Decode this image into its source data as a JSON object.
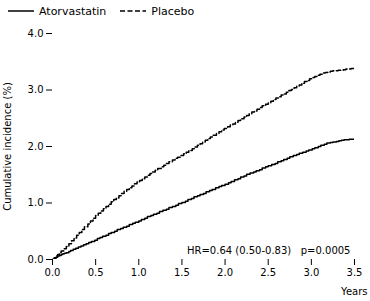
{
  "chart_data": {
    "type": "line",
    "line_style": "step",
    "title": "",
    "xlabel": "Years",
    "ylabel": "Cumulative incidence (%)",
    "xlim": [
      0.0,
      3.5
    ],
    "ylim": [
      0.0,
      4.0
    ],
    "xticks": [
      {
        "value": 0.0,
        "label": "0.0"
      },
      0.5,
      {
        "value": 1.0,
        "label": "1.0"
      },
      1.5,
      {
        "value": 2.0,
        "label": "2.0"
      },
      2.5,
      {
        "value": 3.0,
        "label": "3.0"
      },
      3.5
    ],
    "yticks": [
      {
        "value": 0.0,
        "label": "0.0"
      },
      {
        "value": 1.0,
        "label": "1.0"
      },
      {
        "value": 2.0,
        "label": "2.0"
      },
      {
        "value": 3.0,
        "label": "3.0"
      },
      {
        "value": 4.0,
        "label": "4.0"
      }
    ],
    "annotation": "HR=0.64 (0.50-0.83)   p=0.0005",
    "legend": "upper left",
    "grid": false,
    "series": [
      {
        "name": "Atorvastatin",
        "color": "#000000",
        "line_style": "solid",
        "x": [
          0.0,
          0.02,
          0.04,
          0.06,
          0.08,
          0.1,
          0.12,
          0.14,
          0.16,
          0.19,
          0.21,
          0.24,
          0.27,
          0.3,
          0.33,
          0.36,
          0.39,
          0.42,
          0.45,
          0.49,
          0.52,
          0.55,
          0.58,
          0.62,
          0.65,
          0.68,
          0.72,
          0.75,
          0.79,
          0.82,
          0.86,
          0.89,
          0.93,
          0.96,
          1.0,
          1.03,
          1.07,
          1.1,
          1.14,
          1.17,
          1.21,
          1.24,
          1.28,
          1.32,
          1.35,
          1.39,
          1.43,
          1.46,
          1.5,
          1.54,
          1.57,
          1.61,
          1.64,
          1.68,
          1.71,
          1.75,
          1.78,
          1.82,
          1.85,
          1.89,
          1.93,
          1.96,
          2.0,
          2.04,
          2.07,
          2.11,
          2.15,
          2.18,
          2.22,
          2.25,
          2.29,
          2.33,
          2.36,
          2.4,
          2.43,
          2.47,
          2.5,
          2.54,
          2.58,
          2.61,
          2.65,
          2.68,
          2.72,
          2.75,
          2.79,
          2.83,
          2.86,
          2.9,
          2.94,
          2.97,
          3.01,
          3.04,
          3.08,
          3.11,
          3.15,
          3.18,
          3.22,
          3.25,
          3.29,
          3.32,
          3.35,
          3.38,
          3.41,
          3.44,
          3.47,
          3.5
        ],
        "values": [
          0.0,
          0.02,
          0.04,
          0.06,
          0.07,
          0.09,
          0.1,
          0.11,
          0.12,
          0.14,
          0.16,
          0.18,
          0.2,
          0.22,
          0.24,
          0.26,
          0.28,
          0.3,
          0.32,
          0.34,
          0.37,
          0.39,
          0.41,
          0.43,
          0.46,
          0.48,
          0.5,
          0.53,
          0.55,
          0.57,
          0.59,
          0.62,
          0.64,
          0.66,
          0.68,
          0.71,
          0.73,
          0.76,
          0.78,
          0.8,
          0.82,
          0.85,
          0.87,
          0.89,
          0.92,
          0.94,
          0.96,
          0.99,
          1.01,
          1.03,
          1.06,
          1.08,
          1.11,
          1.13,
          1.15,
          1.17,
          1.2,
          1.22,
          1.24,
          1.27,
          1.29,
          1.31,
          1.33,
          1.36,
          1.38,
          1.41,
          1.43,
          1.46,
          1.48,
          1.51,
          1.53,
          1.55,
          1.57,
          1.59,
          1.62,
          1.64,
          1.66,
          1.68,
          1.7,
          1.73,
          1.75,
          1.77,
          1.79,
          1.82,
          1.84,
          1.86,
          1.88,
          1.9,
          1.92,
          1.94,
          1.96,
          1.98,
          2.0,
          2.02,
          2.04,
          2.06,
          2.07,
          2.08,
          2.09,
          2.1,
          2.11,
          2.12,
          2.12,
          2.13,
          2.13,
          2.13
        ]
      },
      {
        "name": "Placebo",
        "color": "#000000",
        "line_style": "dashed",
        "x": [
          0.0,
          0.02,
          0.04,
          0.06,
          0.08,
          0.1,
          0.13,
          0.16,
          0.19,
          0.22,
          0.25,
          0.28,
          0.31,
          0.34,
          0.37,
          0.41,
          0.44,
          0.47,
          0.5,
          0.53,
          0.56,
          0.59,
          0.62,
          0.65,
          0.68,
          0.71,
          0.74,
          0.77,
          0.8,
          0.83,
          0.86,
          0.89,
          0.92,
          0.95,
          0.98,
          1.01,
          1.04,
          1.07,
          1.1,
          1.13,
          1.16,
          1.19,
          1.22,
          1.26,
          1.29,
          1.32,
          1.35,
          1.39,
          1.42,
          1.45,
          1.48,
          1.52,
          1.55,
          1.58,
          1.62,
          1.65,
          1.68,
          1.71,
          1.74,
          1.77,
          1.8,
          1.83,
          1.86,
          1.9,
          1.93,
          1.96,
          1.99,
          2.03,
          2.06,
          2.09,
          2.12,
          2.15,
          2.18,
          2.22,
          2.25,
          2.28,
          2.31,
          2.34,
          2.37,
          2.4,
          2.43,
          2.47,
          2.5,
          2.53,
          2.56,
          2.59,
          2.62,
          2.65,
          2.68,
          2.71,
          2.74,
          2.77,
          2.8,
          2.83,
          2.86,
          2.89,
          2.92,
          2.95,
          2.98,
          3.01,
          3.04,
          3.07,
          3.1,
          3.13,
          3.16,
          3.19,
          3.22,
          3.25,
          3.28,
          3.31,
          3.34,
          3.37,
          3.4,
          3.43,
          3.46,
          3.5
        ],
        "values": [
          0.0,
          0.03,
          0.06,
          0.09,
          0.12,
          0.15,
          0.19,
          0.23,
          0.28,
          0.33,
          0.38,
          0.43,
          0.48,
          0.53,
          0.58,
          0.63,
          0.68,
          0.73,
          0.78,
          0.82,
          0.86,
          0.9,
          0.94,
          0.98,
          1.02,
          1.06,
          1.09,
          1.13,
          1.17,
          1.21,
          1.24,
          1.27,
          1.3,
          1.34,
          1.37,
          1.4,
          1.43,
          1.46,
          1.49,
          1.52,
          1.55,
          1.58,
          1.61,
          1.64,
          1.67,
          1.7,
          1.73,
          1.76,
          1.79,
          1.81,
          1.84,
          1.87,
          1.9,
          1.93,
          1.96,
          1.99,
          2.02,
          2.05,
          2.08,
          2.11,
          2.14,
          2.17,
          2.2,
          2.23,
          2.26,
          2.29,
          2.32,
          2.35,
          2.38,
          2.4,
          2.43,
          2.46,
          2.49,
          2.52,
          2.55,
          2.58,
          2.61,
          2.63,
          2.66,
          2.69,
          2.72,
          2.75,
          2.77,
          2.8,
          2.83,
          2.86,
          2.88,
          2.91,
          2.93,
          2.96,
          2.99,
          3.01,
          3.04,
          3.07,
          3.09,
          3.12,
          3.15,
          3.17,
          3.2,
          3.22,
          3.24,
          3.26,
          3.28,
          3.3,
          3.31,
          3.32,
          3.33,
          3.34,
          3.34,
          3.35,
          3.35,
          3.36,
          3.37,
          3.37,
          3.38,
          3.38
        ]
      }
    ]
  }
}
